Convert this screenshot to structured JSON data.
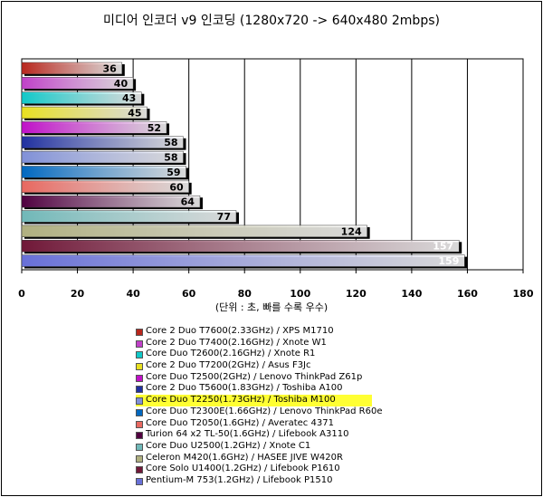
{
  "chart_data": {
    "type": "bar",
    "orientation": "horizontal",
    "title": "미디어 인코더 v9 인코딩 (1280x720 -> 640x480 2mbps)",
    "xlabel": "(단위 : 초, 빠를 수록 우수)",
    "xlim": [
      0,
      180
    ],
    "xticks": [
      0,
      20,
      40,
      60,
      80,
      100,
      120,
      140,
      160,
      180
    ],
    "grid": true,
    "legend_position": "bottom",
    "categories": [
      "Core 2 Duo T7600(2.33GHz) / XPS M1710",
      "Core 2 Duo T7400(2.16GHz) / Xnote W1",
      "Core Duo T2600(2.16GHz) / Xnote R1",
      "Core 2 Duo T7200(2GHz) / Asus F3Jc",
      "Core Duo T2500(2GHz) / Lenovo ThinkPad Z61p",
      "Core 2 Duo T5600(1.83GHz) / Toshiba A100",
      "Core Duo T2250(1.73GHz) / Toshiba M100",
      "Core Duo T2300E(1.66GHz) / Lenovo ThinkPad R60e",
      "Core Duo T2050(1.6GHz) / Averatec 4371",
      "Turion 64 x2 TL-50(1.6GHz) / Lifebook A3110",
      "Core Duo U2500(1.2GHz) / Xnote C1",
      "Celeron M420(1.6GHz) / HASEE JIVE W420R",
      "Core Solo U1400(1.2GHz) / Lifebook P1610",
      "Pentium-M 753(1.2GHz) / Lifebook P1510"
    ],
    "values": [
      36,
      40,
      43,
      45,
      52,
      58,
      58,
      59,
      60,
      64,
      77,
      124,
      157,
      159
    ],
    "highlighted": "Core Duo T2250(1.73GHz) / Toshiba M100",
    "colors": [
      "#b8261c",
      "#c040c8",
      "#10c8c8",
      "#e8e020",
      "#c010c8",
      "#2030a0",
      "#8090d8",
      "#0068c0",
      "#e86860",
      "#500040",
      "#70b8b8",
      "#b0b080",
      "#701838",
      "#6870d8"
    ]
  }
}
